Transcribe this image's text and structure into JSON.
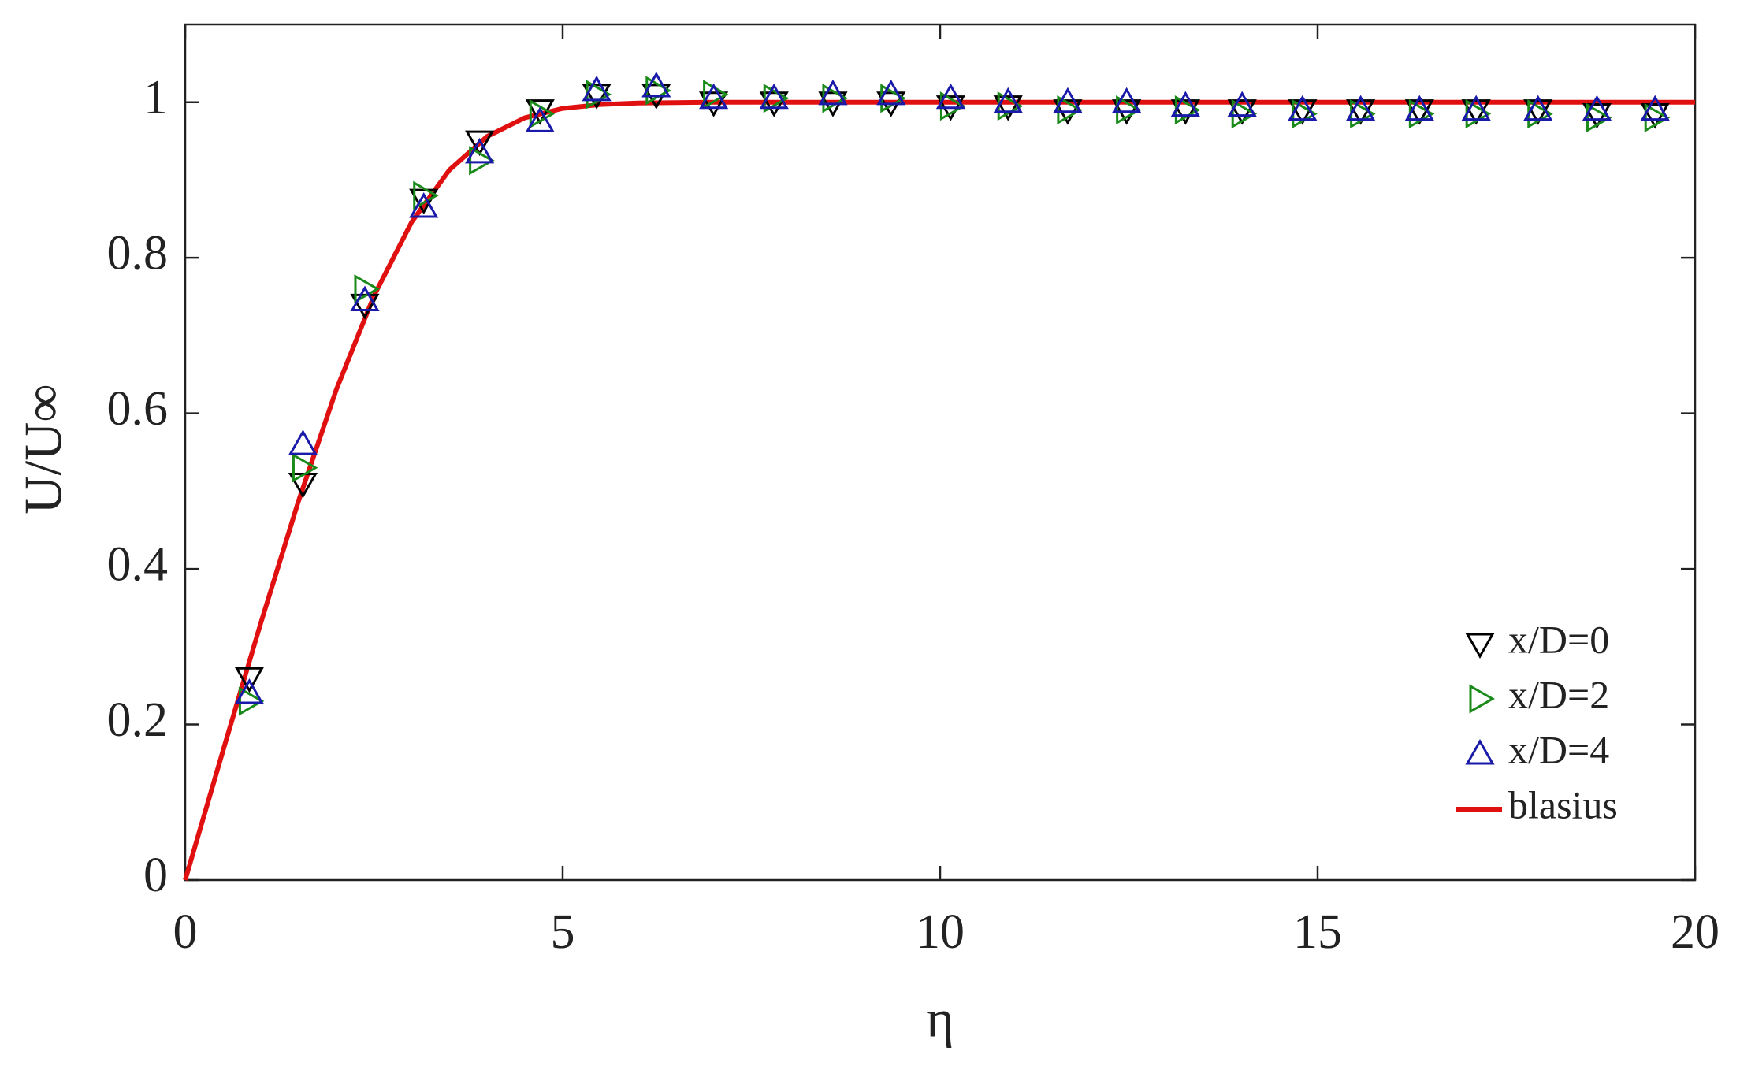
{
  "chart_data": {
    "type": "scatter",
    "xlabel": "η",
    "ylabel": "U/U∞",
    "x": [
      0.85,
      1.56,
      2.38,
      3.16,
      3.9,
      4.7,
      5.45,
      6.24,
      7.0,
      7.8,
      8.58,
      9.35,
      10.14,
      10.9,
      11.69,
      12.47,
      13.25,
      14.0,
      14.8,
      15.57,
      16.35,
      17.1,
      17.92,
      18.7,
      19.47
    ],
    "series": [
      {
        "name": "x/D=0",
        "color": "#000000",
        "mode": "markers",
        "marker": "triangle-down",
        "values": [
          0.26,
          0.51,
          0.74,
          0.875,
          0.95,
          0.99,
          1.01,
          1.01,
          1.0,
          1.0,
          1.0,
          1.0,
          0.995,
          0.995,
          0.99,
          0.99,
          0.99,
          0.99,
          0.99,
          0.99,
          0.99,
          0.99,
          0.99,
          0.985,
          0.985
        ]
      },
      {
        "name": "x/D=2",
        "color": "#1a8a1a",
        "mode": "markers",
        "marker": "triangle-right",
        "values": [
          0.23,
          0.53,
          0.76,
          0.88,
          0.925,
          0.985,
          1.01,
          1.015,
          1.01,
          1.005,
          1.005,
          1.005,
          0.995,
          0.995,
          0.99,
          0.99,
          0.99,
          0.985,
          0.985,
          0.985,
          0.985,
          0.985,
          0.985,
          0.98,
          0.98
        ]
      },
      {
        "name": "x/D=4",
        "color": "#1a1aaa",
        "mode": "markers",
        "marker": "triangle-up",
        "values": [
          0.24,
          0.56,
          0.745,
          0.865,
          0.935,
          0.975,
          1.015,
          1.02,
          1.005,
          1.005,
          1.01,
          1.01,
          1.005,
          1.0,
          1.0,
          1.0,
          0.995,
          0.995,
          0.99,
          0.99,
          0.99,
          0.99,
          0.99,
          0.99,
          0.99
        ]
      },
      {
        "name": "blasius",
        "color": "#e01010",
        "mode": "line",
        "x": [
          0,
          0.5,
          1,
          1.5,
          2,
          2.5,
          3,
          3.5,
          4,
          4.5,
          5,
          5.5,
          6,
          7,
          20
        ],
        "values": [
          0,
          0.166,
          0.33,
          0.487,
          0.63,
          0.751,
          0.846,
          0.913,
          0.956,
          0.98,
          0.992,
          0.997,
          0.999,
          1,
          1
        ]
      }
    ],
    "xlim": [
      0,
      20
    ],
    "xticks": [
      0,
      5,
      10,
      15,
      20
    ],
    "ylim": [
      0,
      1.1
    ],
    "yticks": [
      0,
      0.2,
      0.4,
      0.6,
      0.8,
      1
    ],
    "grid": false,
    "legend": "lower right"
  }
}
